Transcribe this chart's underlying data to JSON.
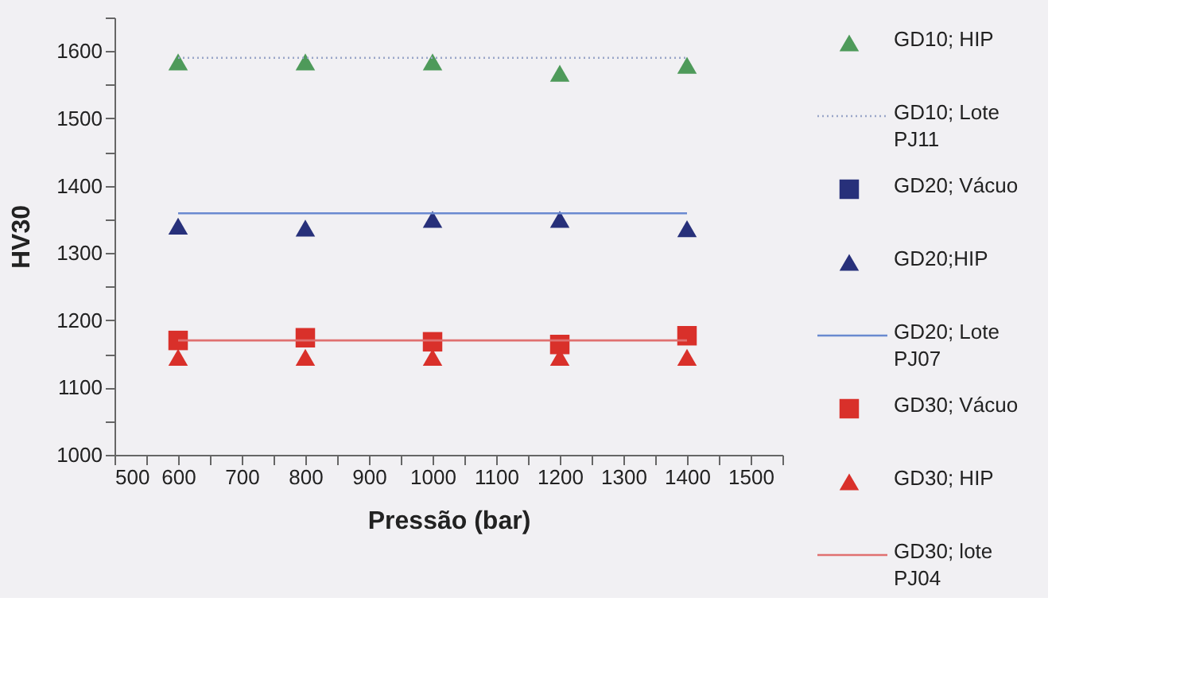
{
  "chart_data": {
    "type": "scatter",
    "xlabel": "Pressão (bar)",
    "ylabel": "HV30",
    "xlim": [
      500,
      1550
    ],
    "ylim": [
      1000,
      1650
    ],
    "xticks": [
      500,
      {
        "value": 550,
        "label": null
      },
      600,
      {
        "value": 650,
        "label": null
      },
      700,
      {
        "value": 750,
        "label": null
      },
      800,
      {
        "value": 850,
        "label": null
      },
      900,
      {
        "value": 950,
        "label": null
      },
      1000,
      {
        "value": 1050,
        "label": null
      },
      1100,
      {
        "value": 1150,
        "label": null
      },
      1200,
      {
        "value": 1250,
        "label": null
      },
      1300,
      {
        "value": 1350,
        "label": null
      },
      1400,
      {
        "value": 1450,
        "label": null
      },
      1500,
      {
        "value": 1550,
        "label": null
      }
    ],
    "yticks": [
      1000,
      {
        "value": 1050,
        "label": null
      },
      1100,
      {
        "value": 1150,
        "label": null
      },
      1200,
      {
        "value": 1250,
        "label": null
      },
      1300,
      {
        "value": 1350,
        "label": null
      },
      1400,
      {
        "value": 1450,
        "label": null
      },
      1500,
      {
        "value": 1550,
        "label": null
      },
      1600,
      {
        "value": 1650,
        "label": null
      }
    ],
    "x": [
      600,
      800,
      1000,
      1200,
      1400
    ],
    "grid": false,
    "legend": "right",
    "series": [
      {
        "name": "GD10; HIP",
        "marker": "triangle",
        "color": "#4e9a5a",
        "values": [
          1584,
          1584,
          1584,
          1567,
          1579
        ]
      },
      {
        "name": "GD10; Lote PJ11",
        "type": "line",
        "line_style": "dotted",
        "color": "#9aa6c8",
        "values": [
          1590,
          1590,
          1590,
          1590,
          1590
        ]
      },
      {
        "name": "GD20; Vácuo",
        "marker": "square",
        "color": "#27307a",
        "values": [
          null,
          null,
          null,
          null,
          null
        ]
      },
      {
        "name": "GD20;HIP",
        "marker": "triangle",
        "color": "#27307a",
        "values": [
          1340,
          1337,
          1350,
          1350,
          1336
        ]
      },
      {
        "name": "GD20; Lote PJ07",
        "type": "line",
        "line_style": "solid",
        "color": "#6a8ad0",
        "values": [
          1359,
          1359,
          1359,
          1359,
          1359
        ]
      },
      {
        "name": "GD30; Vácuo",
        "marker": "square",
        "color": "#d9302a",
        "values": [
          1170,
          1174,
          1168,
          1164,
          1177
        ]
      },
      {
        "name": "GD30; HIP",
        "marker": "triangle",
        "color": "#d9302a",
        "values": [
          1145,
          1145,
          1145,
          1145,
          1145
        ]
      },
      {
        "name": "GD30; lote PJ04",
        "type": "line",
        "line_style": "solid",
        "color": "#e07070",
        "values": [
          1170,
          1170,
          1170,
          1170,
          1170
        ]
      }
    ]
  }
}
